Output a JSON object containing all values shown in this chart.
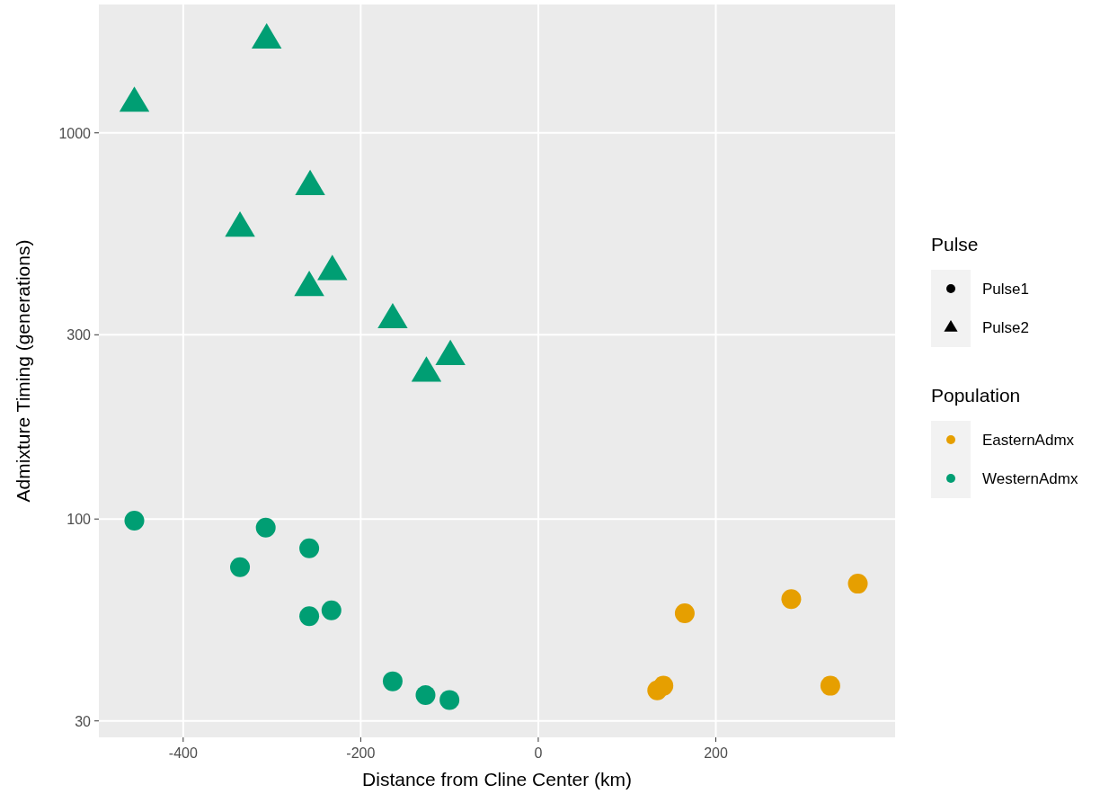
{
  "chart_data": {
    "type": "scatter",
    "xlabel": "Distance from Cline Center (km)",
    "ylabel": "Admixture Timing (generations)",
    "log": "y",
    "grid": true,
    "legend": "right",
    "legend_title": "Population",
    "annotations": [
      "Pulse",
      "Pulse1",
      "Pulse2"
    ],
    "xlim": [
      -495,
      402
    ],
    "xticks": [
      -400,
      -200,
      0,
      200
    ],
    "ylim": [
      27.2,
      2150
    ],
    "yticks": [
      30,
      100,
      300,
      1000
    ],
    "series": [
      {
        "name": "EasternAdmx",
        "marker": "circle",
        "color": "#e69f00",
        "x": [
          360,
          285,
          165,
          329,
          134,
          141
        ],
        "values": [
          68,
          62,
          57,
          37,
          36,
          37
        ]
      },
      {
        "name": "WesternAdmx",
        "marker": "circle",
        "color": "#009e73",
        "x": [
          -455,
          -307,
          -258,
          -336,
          -233,
          -258,
          -164,
          -127,
          -100
        ],
        "values": [
          99,
          95,
          84,
          75,
          58,
          56,
          38,
          35,
          34
        ]
      },
      {
        "marker": "triangle",
        "color": "#009e73",
        "x": [
          -306,
          -455,
          -257,
          -336,
          -232,
          -258,
          -164,
          -99,
          -126
        ],
        "values": [
          1750,
          1200,
          730,
          570,
          440,
          400,
          330,
          265,
          240
        ]
      }
    ]
  }
}
